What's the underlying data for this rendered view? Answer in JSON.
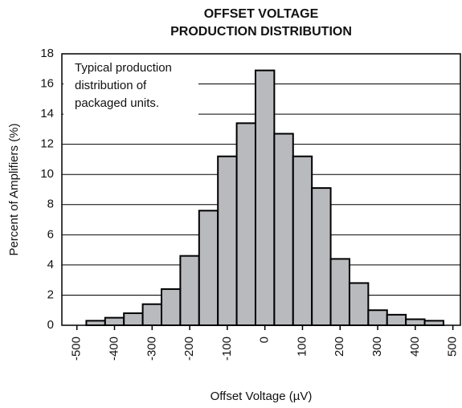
{
  "chart_data": {
    "type": "histogram",
    "title_lines": [
      "OFFSET VOLTAGE",
      "PRODUCTION DISTRIBUTION"
    ],
    "annotation_lines": [
      "Typical production",
      "distribution of",
      "packaged units."
    ],
    "xlabel": "Offset Voltage (µV)",
    "ylabel": "Percent of Amplifiers (%)",
    "bins": [
      -475,
      -425,
      -375,
      -325,
      -275,
      -225,
      -175,
      -125,
      -75,
      -25,
      25,
      75,
      125,
      175,
      225,
      275,
      325,
      375,
      425,
      475
    ],
    "values": [
      0.3,
      0.5,
      0.8,
      1.4,
      2.4,
      4.6,
      7.6,
      11.2,
      13.4,
      16.9,
      12.7,
      11.2,
      9.1,
      4.4,
      2.8,
      1.0,
      0.7,
      0.4,
      0.3
    ],
    "color": "#b9babe",
    "xlim": [
      -540,
      520
    ],
    "xticks": [
      -500,
      -400,
      -300,
      -200,
      -100,
      0,
      100,
      200,
      300,
      400,
      500
    ],
    "ylim": [
      0,
      18
    ],
    "yticks": [
      0,
      2,
      4,
      6,
      8,
      10,
      12,
      14,
      16,
      18
    ],
    "grid": true
  }
}
